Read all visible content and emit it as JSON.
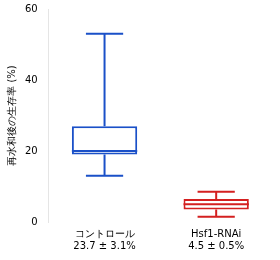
{
  "chart_data": {
    "type": "box",
    "ylabel": "再水和後の生存率 (%)",
    "categories": [
      "コントロール",
      "Hsf1-RNAi"
    ],
    "annotations": [
      "23.7 ± 3.1%",
      "4.5 ± 0.5%"
    ],
    "whisker_low": [
      13,
      1.5
    ],
    "q1": [
      19,
      3.5
    ],
    "median": [
      20,
      5
    ],
    "q3": [
      27,
      6.5
    ],
    "whisker_high": [
      53,
      8.5
    ],
    "colors": [
      "#1a50c8",
      "#d42020"
    ],
    "ylim": [
      0,
      60
    ],
    "yticks": [
      0,
      20,
      40,
      60
    ],
    "grid": false
  }
}
